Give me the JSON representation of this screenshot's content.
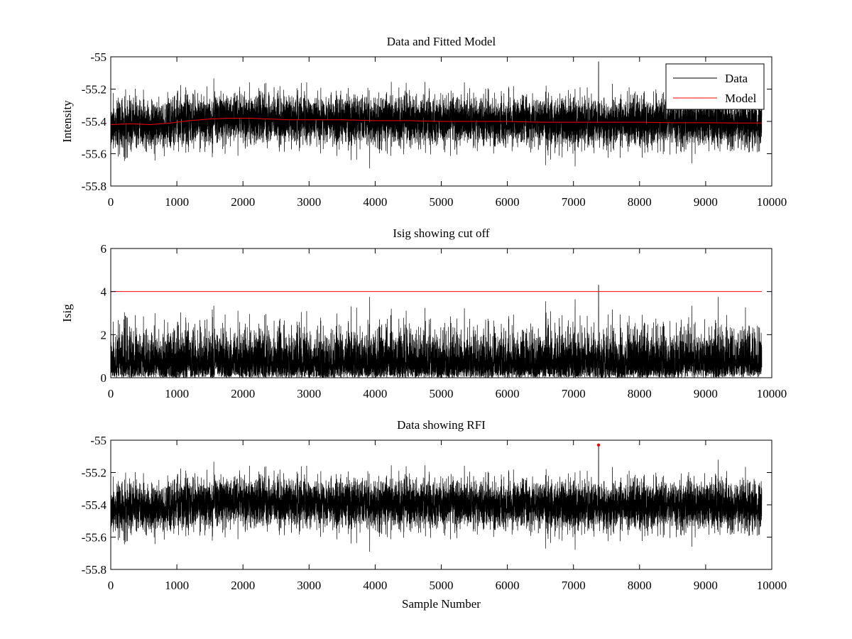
{
  "colors": {
    "data": "#000000",
    "model": "#ff0000",
    "cutoff": "#ff0000",
    "rfi": "#ff0000",
    "background": "#ffffff"
  },
  "chart_data": [
    {
      "type": "line",
      "title": "Data and Fitted Model",
      "xlabel": "",
      "ylabel": "Intensity",
      "xlim": [
        0,
        10000
      ],
      "ylim": [
        -55.8,
        -55
      ],
      "xticks": [
        0,
        1000,
        2000,
        3000,
        4000,
        5000,
        6000,
        7000,
        8000,
        9000,
        10000
      ],
      "yticks": [
        -55.8,
        -55.6,
        -55.4,
        -55.2,
        -55
      ],
      "ytick_labels": [
        "-55.8",
        "-55.6",
        "-55.4",
        "-55.2",
        "-55"
      ],
      "legend": {
        "placement": "top-right",
        "entries": [
          "Data",
          "Model"
        ]
      },
      "series": [
        {
          "name": "Data",
          "kind": "noise",
          "n_samples": 9850,
          "x_end": 9850,
          "mean": -55.4,
          "std": 0.075,
          "min": -55.72,
          "max": -55.03,
          "spike": {
            "x": 7380,
            "value": -55.03
          }
        },
        {
          "name": "Model",
          "x": [
            0,
            300,
            600,
            900,
            1200,
            1500,
            1800,
            2100,
            2400,
            2700,
            3000,
            3500,
            4000,
            4500,
            5000,
            5500,
            6000,
            6500,
            7000,
            7500,
            8000,
            8500,
            9000,
            9500,
            9850
          ],
          "values": [
            -55.42,
            -55.415,
            -55.42,
            -55.41,
            -55.395,
            -55.385,
            -55.38,
            -55.38,
            -55.385,
            -55.39,
            -55.39,
            -55.39,
            -55.395,
            -55.395,
            -55.4,
            -55.4,
            -55.4,
            -55.405,
            -55.405,
            -55.405,
            -55.405,
            -55.408,
            -55.408,
            -55.41,
            -55.41
          ]
        }
      ]
    },
    {
      "type": "line",
      "title": "Isig showing cut off",
      "xlabel": "",
      "ylabel": "Isig",
      "xlim": [
        0,
        10000
      ],
      "ylim": [
        0,
        6
      ],
      "xticks": [
        0,
        1000,
        2000,
        3000,
        4000,
        5000,
        6000,
        7000,
        8000,
        9000,
        10000
      ],
      "yticks": [
        0,
        2,
        4,
        6
      ],
      "ytick_labels": [
        "0",
        "2",
        "4",
        "6"
      ],
      "series": [
        {
          "name": "Isig",
          "kind": "abs-noise",
          "n_samples": 9850,
          "x_end": 9850,
          "scale": 1.0,
          "max": 4.3,
          "spike": {
            "x": 7380,
            "value": 4.3
          }
        },
        {
          "name": "Cut off",
          "x": [
            0,
            9850
          ],
          "values": [
            4,
            4
          ]
        }
      ]
    },
    {
      "type": "line",
      "title": "Data showing RFI",
      "xlabel": "Sample Number",
      "ylabel": "",
      "xlim": [
        0,
        10000
      ],
      "ylim": [
        -55.8,
        -55
      ],
      "xticks": [
        0,
        1000,
        2000,
        3000,
        4000,
        5000,
        6000,
        7000,
        8000,
        9000,
        10000
      ],
      "yticks": [
        -55.8,
        -55.6,
        -55.4,
        -55.2,
        -55
      ],
      "ytick_labels": [
        "-55.8",
        "-55.6",
        "-55.4",
        "-55.2",
        "-55"
      ],
      "series": [
        {
          "name": "Data",
          "kind": "noise",
          "n_samples": 9850,
          "x_end": 9850,
          "mean": -55.4,
          "std": 0.075,
          "min": -55.72,
          "max": -55.03,
          "spike": {
            "x": 7380,
            "value": -55.03
          }
        },
        {
          "name": "RFI",
          "kind": "points",
          "x": [
            7380
          ],
          "values": [
            -55.03
          ]
        }
      ]
    }
  ]
}
